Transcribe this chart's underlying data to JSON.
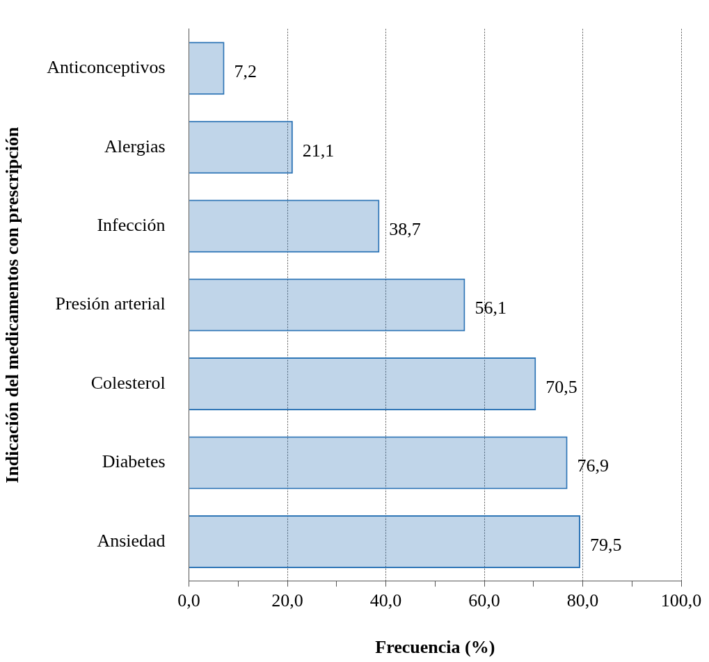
{
  "chart_data": {
    "type": "bar",
    "orientation": "horizontal",
    "xlabel": "Frecuencia (%)",
    "ylabel": "Indicación del medicamentos con prescripción",
    "categories": [
      "Anticonceptivos",
      "Alergias",
      "Infección",
      "Presión arterial",
      "Colesterol",
      "Diabetes",
      "Ansiedad"
    ],
    "values": [
      7.2,
      21.1,
      38.7,
      56.1,
      70.5,
      76.9,
      79.5
    ],
    "value_labels": [
      "7,2",
      "21,1",
      "38,7",
      "56,1",
      "70,5",
      "76,9",
      "79,5"
    ],
    "color": "#2e75b6",
    "xlim": [
      0,
      100
    ],
    "xticks": [
      {
        "value": 0,
        "label": "0,0"
      },
      {
        "value": 10,
        "label": null
      },
      {
        "value": 20,
        "label": "20,0"
      },
      {
        "value": 30,
        "label": null
      },
      {
        "value": 40,
        "label": "40,0"
      },
      {
        "value": 50,
        "label": null
      },
      {
        "value": 60,
        "label": "60,0"
      },
      {
        "value": 70,
        "label": null
      },
      {
        "value": 80,
        "label": "80,0"
      },
      {
        "value": 90,
        "label": null
      },
      {
        "value": 100,
        "label": "100,0"
      }
    ],
    "grid": "x",
    "legend": false
  }
}
